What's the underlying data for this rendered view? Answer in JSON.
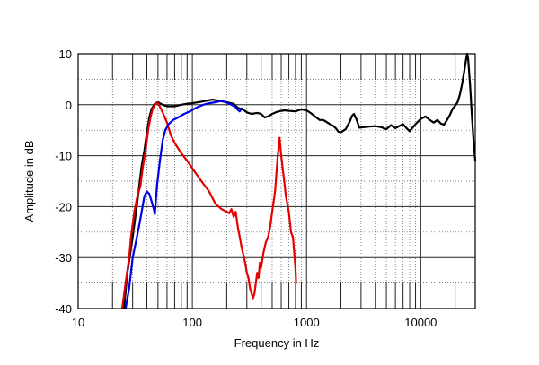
{
  "chart_data": {
    "type": "line",
    "title": "",
    "xlabel": "Frequency in Hz",
    "ylabel": "Amplitude in dB",
    "x_scale": "log",
    "xlim": [
      10,
      30000
    ],
    "ylim": [
      -40,
      10
    ],
    "grid": true,
    "x_ticks": [
      {
        "value": 10,
        "label": "10"
      },
      {
        "value": 100,
        "label": "100"
      },
      {
        "value": 1000,
        "label": "1000"
      },
      {
        "value": 10000,
        "label": "10000"
      }
    ],
    "y_ticks": [
      {
        "value": 10,
        "label": "10"
      },
      {
        "value": 0,
        "label": "0"
      },
      {
        "value": -10,
        "label": "-10"
      },
      {
        "value": -20,
        "label": "-20"
      },
      {
        "value": -30,
        "label": "-30"
      },
      {
        "value": -40,
        "label": "-40"
      }
    ],
    "series": [
      {
        "color": "#000000",
        "points": [
          [
            25.2,
            -40
          ],
          [
            27,
            -33
          ],
          [
            30,
            -26
          ],
          [
            33,
            -19
          ],
          [
            36,
            -12
          ],
          [
            38,
            -9
          ],
          [
            40,
            -5.5
          ],
          [
            42,
            -2.5
          ],
          [
            44,
            -0.8
          ],
          [
            47,
            0.2
          ],
          [
            50,
            0.5
          ],
          [
            55,
            0
          ],
          [
            60,
            -0.3
          ],
          [
            70,
            -0.3
          ],
          [
            80,
            0
          ],
          [
            90,
            0.2
          ],
          [
            100,
            0.3
          ],
          [
            120,
            0.6
          ],
          [
            150,
            1
          ],
          [
            170,
            0.8
          ],
          [
            200,
            0.5
          ],
          [
            230,
            0.2
          ],
          [
            250,
            -0.6
          ],
          [
            280,
            -1
          ],
          [
            300,
            -1.5
          ],
          [
            330,
            -1.8
          ],
          [
            370,
            -1.6
          ],
          [
            400,
            -1.8
          ],
          [
            430,
            -2.5
          ],
          [
            470,
            -2.2
          ],
          [
            500,
            -1.8
          ],
          [
            550,
            -1.4
          ],
          [
            600,
            -1.2
          ],
          [
            650,
            -1.1
          ],
          [
            700,
            -1.2
          ],
          [
            800,
            -1.3
          ],
          [
            900,
            -0.9
          ],
          [
            1000,
            -1.1
          ],
          [
            1100,
            -1.7
          ],
          [
            1200,
            -2.4
          ],
          [
            1300,
            -3
          ],
          [
            1400,
            -3
          ],
          [
            1500,
            -3.4
          ],
          [
            1600,
            -3.8
          ],
          [
            1700,
            -4.1
          ],
          [
            1800,
            -4.6
          ],
          [
            1900,
            -5.3
          ],
          [
            2000,
            -5.4
          ],
          [
            2200,
            -4.8
          ],
          [
            2400,
            -3.2
          ],
          [
            2500,
            -2.2
          ],
          [
            2600,
            -1.8
          ],
          [
            2750,
            -3
          ],
          [
            2900,
            -4.5
          ],
          [
            3200,
            -4.4
          ],
          [
            3500,
            -4.3
          ],
          [
            4000,
            -4.2
          ],
          [
            4500,
            -4.4
          ],
          [
            5000,
            -4.8
          ],
          [
            5500,
            -4
          ],
          [
            6000,
            -4.6
          ],
          [
            7000,
            -3.8
          ],
          [
            7500,
            -4.6
          ],
          [
            8000,
            -5.2
          ],
          [
            9000,
            -3.8
          ],
          [
            10000,
            -2.8
          ],
          [
            11000,
            -2.3
          ],
          [
            12000,
            -3
          ],
          [
            13000,
            -3.5
          ],
          [
            14000,
            -3
          ],
          [
            15000,
            -3.7
          ],
          [
            16000,
            -3.9
          ],
          [
            17000,
            -3
          ],
          [
            18000,
            -2
          ],
          [
            19000,
            -0.8
          ],
          [
            20000,
            -0.2
          ],
          [
            21000,
            0.5
          ],
          [
            22000,
            2
          ],
          [
            23000,
            4
          ],
          [
            24000,
            6.5
          ],
          [
            25000,
            9
          ],
          [
            25500,
            10
          ],
          [
            26000,
            9
          ],
          [
            27000,
            4
          ],
          [
            28000,
            -2
          ],
          [
            29000,
            -7
          ],
          [
            30000,
            -11
          ]
        ]
      },
      {
        "color": "#e60000",
        "points": [
          [
            24.3,
            -40
          ],
          [
            26,
            -35
          ],
          [
            28,
            -30
          ],
          [
            29,
            -26
          ],
          [
            31,
            -21
          ],
          [
            33,
            -18
          ],
          [
            35,
            -16
          ],
          [
            37,
            -12
          ],
          [
            39,
            -9
          ],
          [
            41,
            -5
          ],
          [
            43,
            -2.5
          ],
          [
            45,
            -0.8
          ],
          [
            47,
            0
          ],
          [
            49,
            0.5
          ],
          [
            51,
            0
          ],
          [
            55,
            -1.5
          ],
          [
            60,
            -3.5
          ],
          [
            65,
            -6
          ],
          [
            70,
            -7.5
          ],
          [
            80,
            -9.5
          ],
          [
            90,
            -11
          ],
          [
            100,
            -12.5
          ],
          [
            120,
            -15
          ],
          [
            140,
            -17
          ],
          [
            160,
            -19.5
          ],
          [
            180,
            -20.5
          ],
          [
            200,
            -21
          ],
          [
            210,
            -21.3
          ],
          [
            220,
            -20.5
          ],
          [
            230,
            -22
          ],
          [
            240,
            -21
          ],
          [
            250,
            -24
          ],
          [
            260,
            -26
          ],
          [
            270,
            -28
          ],
          [
            280,
            -29.5
          ],
          [
            290,
            -31
          ],
          [
            300,
            -33
          ],
          [
            310,
            -34
          ],
          [
            320,
            -36
          ],
          [
            330,
            -37
          ],
          [
            340,
            -38
          ],
          [
            350,
            -37
          ],
          [
            360,
            -35
          ],
          [
            370,
            -33
          ],
          [
            380,
            -34
          ],
          [
            390,
            -31
          ],
          [
            400,
            -32
          ],
          [
            420,
            -29
          ],
          [
            440,
            -27
          ],
          [
            460,
            -26
          ],
          [
            480,
            -24
          ],
          [
            500,
            -21
          ],
          [
            530,
            -17
          ],
          [
            560,
            -10
          ],
          [
            580,
            -6.5
          ],
          [
            600,
            -10
          ],
          [
            630,
            -14
          ],
          [
            660,
            -18
          ],
          [
            700,
            -21
          ],
          [
            730,
            -25
          ],
          [
            760,
            -26
          ],
          [
            780,
            -29
          ],
          [
            800,
            -32
          ],
          [
            810,
            -35
          ]
        ]
      },
      {
        "color": "#0000e6",
        "points": [
          [
            26,
            -40
          ],
          [
            28,
            -36
          ],
          [
            30,
            -30
          ],
          [
            32,
            -27
          ],
          [
            34,
            -24
          ],
          [
            36,
            -21
          ],
          [
            38,
            -18
          ],
          [
            40,
            -17
          ],
          [
            42,
            -17.5
          ],
          [
            44,
            -19
          ],
          [
            46,
            -20.5
          ],
          [
            47,
            -21.5
          ],
          [
            49,
            -16
          ],
          [
            52,
            -11
          ],
          [
            55,
            -7
          ],
          [
            58,
            -5
          ],
          [
            62,
            -3.8
          ],
          [
            68,
            -3
          ],
          [
            75,
            -2.5
          ],
          [
            85,
            -1.8
          ],
          [
            95,
            -1.3
          ],
          [
            110,
            -0.5
          ],
          [
            125,
            0
          ],
          [
            140,
            0.3
          ],
          [
            160,
            0.5
          ],
          [
            180,
            0.8
          ],
          [
            200,
            0.4
          ],
          [
            220,
            0
          ],
          [
            240,
            -0.5
          ],
          [
            250,
            -1
          ],
          [
            260,
            -1.3
          ],
          [
            270,
            -0.7
          ]
        ]
      }
    ]
  }
}
